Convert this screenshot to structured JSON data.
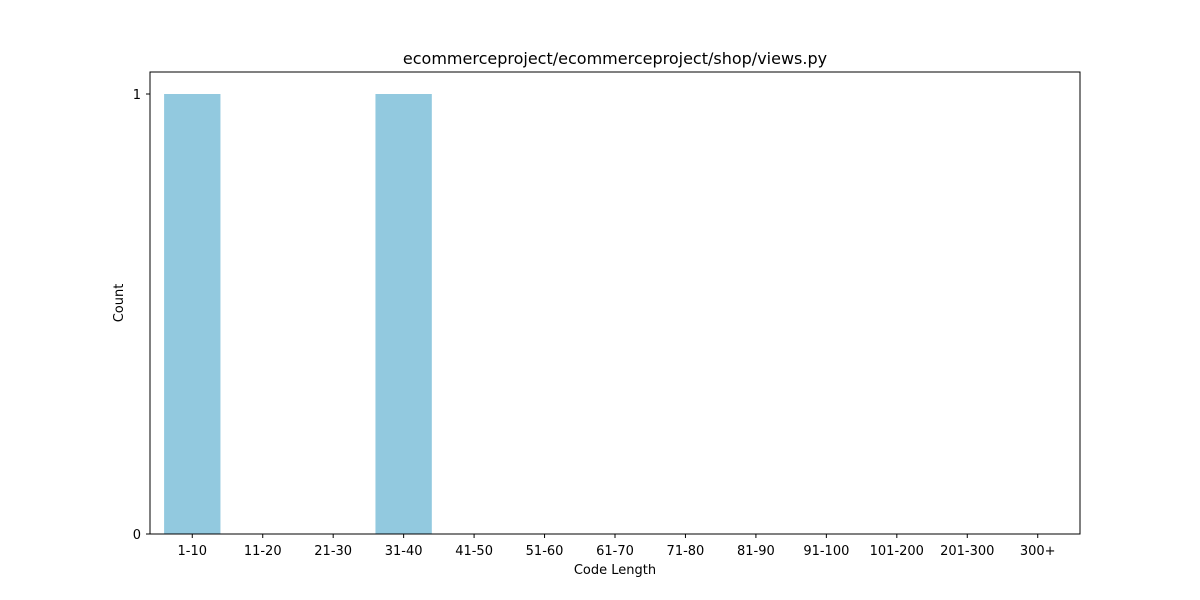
{
  "chart_data": {
    "type": "bar",
    "title": "ecommerceproject/ecommerceproject/shop/views.py",
    "xlabel": "Code Length",
    "ylabel": "Count",
    "categories": [
      "1-10",
      "11-20",
      "21-30",
      "31-40",
      "41-50",
      "51-60",
      "61-70",
      "71-80",
      "81-90",
      "91-100",
      "101-200",
      "201-300",
      "300+"
    ],
    "values": [
      1,
      0,
      0,
      1,
      0,
      0,
      0,
      0,
      0,
      0,
      0,
      0,
      0
    ],
    "ylim": [
      0,
      1.05
    ],
    "yticks": [
      0,
      1
    ],
    "grid": false,
    "legend": "none",
    "bar_color": "#92c9df"
  }
}
